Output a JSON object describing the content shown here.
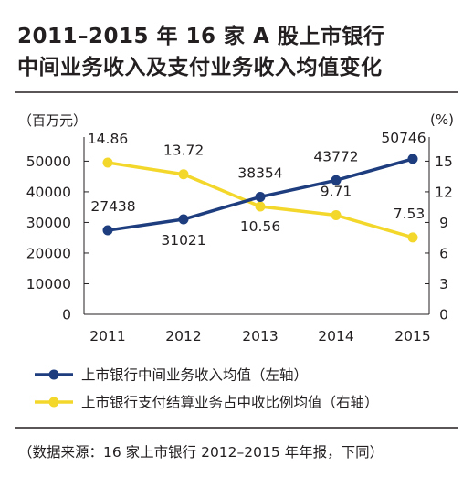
{
  "header": {
    "title_line1": "2011–2015 年 16 家 A 股上市银行",
    "title_line2": "中间业务收入及支付业务收入均值变化"
  },
  "footnote": "（数据来源：16 家上市银行 2012–2015 年年报，下同）",
  "chart_data": {
    "type": "line",
    "categories": [
      "2011",
      "2012",
      "2013",
      "2014",
      "2015"
    ],
    "left_axis": {
      "unit_label": "（百万元）",
      "ticks": [
        0,
        10000,
        20000,
        30000,
        40000,
        50000
      ],
      "ylim": [
        0,
        54000
      ]
    },
    "right_axis": {
      "unit_label": "(%)",
      "ticks": [
        0,
        3,
        6,
        9,
        12,
        15
      ],
      "ylim": [
        0,
        16.2
      ]
    },
    "grid": false,
    "legend_position": "bottom",
    "series": [
      {
        "name": "上市银行中间业务收入均值（左轴）",
        "axis": "left",
        "color": "#1d3d7f",
        "values": [
          27438,
          31021,
          38354,
          43772,
          50746
        ],
        "labels": [
          "27438",
          "31021",
          "38354",
          "43772",
          "50746"
        ]
      },
      {
        "name": "上市银行支付结算业务占中收比例均值（右轴）",
        "axis": "right",
        "color": "#f3d72b",
        "values": [
          14.86,
          13.72,
          10.56,
          9.71,
          7.53
        ],
        "labels": [
          "14.86",
          "13.72",
          "10.56",
          "9.71",
          "7.53"
        ]
      }
    ]
  }
}
